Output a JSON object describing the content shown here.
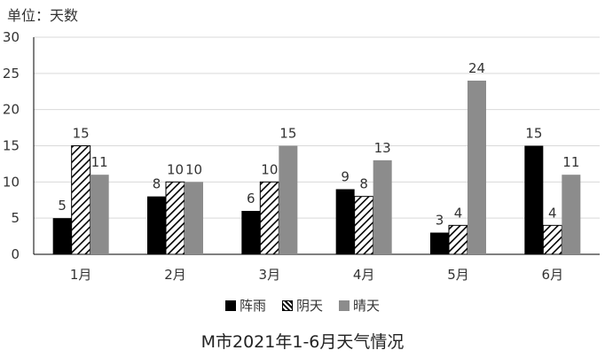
{
  "unit_label": "单位：天数",
  "chart_data": {
    "type": "bar",
    "title": "M市2021年1-6月天气情况",
    "categories": [
      "1月",
      "2月",
      "3月",
      "4月",
      "5月",
      "6月"
    ],
    "series": [
      {
        "name": "阵雨",
        "values": [
          5,
          8,
          6,
          9,
          3,
          15
        ],
        "color": "#000000",
        "pattern": "solid"
      },
      {
        "name": "阴天",
        "values": [
          15,
          10,
          10,
          8,
          4,
          4
        ],
        "color": "#000000",
        "pattern": "diagonal-hatch"
      },
      {
        "name": "晴天",
        "values": [
          11,
          10,
          15,
          13,
          24,
          11
        ],
        "color": "#8c8c8c",
        "pattern": "solid"
      }
    ],
    "ylim": [
      0,
      30
    ],
    "yticks": [
      "0",
      "5",
      "10",
      "15",
      "20",
      "25",
      "30"
    ],
    "grid": true,
    "legend_position": "bottom"
  }
}
